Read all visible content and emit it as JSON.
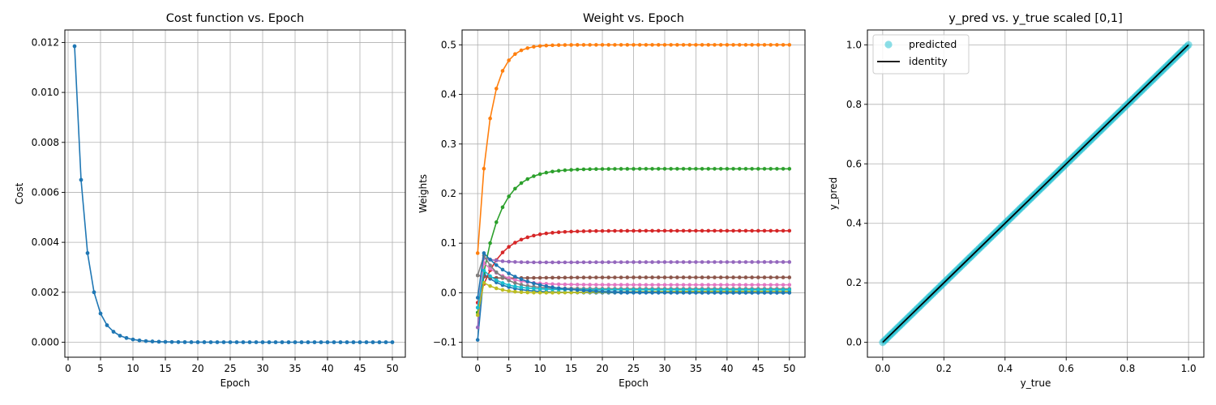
{
  "chart_data": [
    {
      "type": "line",
      "title": "Cost function vs. Epoch",
      "xlabel": "Epoch",
      "ylabel": "Cost",
      "xlim": [
        -0.5,
        52
      ],
      "ylim": [
        -0.0006,
        0.0125
      ],
      "xticks": [
        0,
        5,
        10,
        15,
        20,
        25,
        30,
        35,
        40,
        45,
        50
      ],
      "yticks": [
        0.0,
        0.002,
        0.004,
        0.006,
        0.008,
        0.01,
        0.012
      ],
      "ytick_labels": [
        "0.000",
        "0.002",
        "0.004",
        "0.006",
        "0.008",
        "0.010",
        "0.012"
      ],
      "grid": true,
      "series": [
        {
          "color": "#1f77b4",
          "x": [
            1,
            2,
            3,
            4,
            5,
            6,
            7,
            8,
            9,
            10,
            11,
            12,
            13,
            14,
            15,
            16,
            17,
            18,
            19,
            20,
            21,
            22,
            23,
            24,
            25,
            26,
            27,
            28,
            29,
            30,
            31,
            32,
            33,
            34,
            35,
            36,
            37,
            38,
            39,
            40,
            41,
            42,
            43,
            44,
            45,
            46,
            47,
            48,
            49,
            50
          ],
          "values": [
            0.01185,
            0.0065,
            0.00357,
            0.002,
            0.00115,
            0.00068,
            0.00042,
            0.00026,
            0.00017,
            0.00011,
            7e-05,
            4.5e-05,
            3e-05,
            2e-05,
            1.3e-05,
            9e-06,
            6e-06,
            4e-06,
            3e-06,
            2e-06,
            1.5e-06,
            1e-06,
            8e-07,
            6e-07,
            5e-07,
            4e-07,
            3e-07,
            2e-07,
            2e-07,
            1e-07,
            1e-07,
            0,
            0,
            0,
            0,
            0,
            0,
            0,
            0,
            0,
            0,
            0,
            0,
            0,
            0,
            0,
            0,
            0,
            0,
            0
          ]
        }
      ]
    },
    {
      "type": "line",
      "title": "Weight vs. Epoch",
      "xlabel": "Epoch",
      "ylabel": "Weights",
      "xlim": [
        -2.5,
        52.5
      ],
      "ylim": [
        -0.13,
        0.53
      ],
      "xticks": [
        0,
        5,
        10,
        15,
        20,
        25,
        30,
        35,
        40,
        45,
        50
      ],
      "yticks": [
        -0.1,
        0.0,
        0.1,
        0.2,
        0.3,
        0.4,
        0.5
      ],
      "ytick_labels": [
        "−0.1",
        "0.0",
        "0.1",
        "0.2",
        "0.3",
        "0.4",
        "0.5"
      ],
      "grid": true,
      "epochs": 51,
      "series": [
        {
          "color": "#1f77b4",
          "start": -0.095,
          "peak_epoch": 1,
          "peak": 0.038,
          "final": 0.0,
          "rate": 0.3
        },
        {
          "color": "#ff7f0e",
          "start": 0.08,
          "final": 0.5,
          "rate": 0.52
        },
        {
          "color": "#2ca02c",
          "start": -0.04,
          "final": 0.25,
          "rate": 0.33
        },
        {
          "color": "#d62728",
          "start": -0.02,
          "final": 0.125,
          "rate": 0.3
        },
        {
          "color": "#9467bd",
          "start": -0.07,
          "peak_epoch": 1,
          "peak": 0.07,
          "final": 0.062,
          "rate": 0.3,
          "dip": 0.058
        },
        {
          "color": "#8c564b",
          "start": 0.035,
          "final": 0.031,
          "rate": 0.3,
          "dip": -0.008
        },
        {
          "color": "#e377c2",
          "start": -0.03,
          "peak_epoch": 1,
          "peak": 0.06,
          "final": 0.016,
          "rate": 0.3
        },
        {
          "color": "#7f7f7f",
          "start": 0.035,
          "peak_epoch": 1,
          "peak": 0.075,
          "final": 0.008,
          "rate": 0.35
        },
        {
          "color": "#bcbd22",
          "start": -0.045,
          "peak_epoch": 1,
          "peak": 0.02,
          "final": 0.003,
          "rate": 0.22,
          "dip": -0.015
        },
        {
          "color": "#17becf",
          "start": -0.03,
          "peak_epoch": 1,
          "peak": 0.045,
          "final": 0.006,
          "rate": 0.35
        },
        {
          "color": "#1f77b4",
          "start": -0.01,
          "peak_epoch": 1,
          "peak": 0.08,
          "final": 0.0,
          "rate": 0.18
        }
      ]
    },
    {
      "type": "scatter",
      "title": "y_pred vs. y_true scaled [0,1]",
      "xlabel": "y_true",
      "ylabel": "y_pred",
      "xlim": [
        -0.05,
        1.05
      ],
      "ylim": [
        -0.05,
        1.05
      ],
      "xticks": [
        0.0,
        0.2,
        0.4,
        0.6,
        0.8,
        1.0
      ],
      "xtick_labels": [
        "0.0",
        "0.2",
        "0.4",
        "0.6",
        "0.8",
        "1.0"
      ],
      "yticks": [
        0.0,
        0.2,
        0.4,
        0.6,
        0.8,
        1.0
      ],
      "ytick_labels": [
        "0.0",
        "0.2",
        "0.4",
        "0.6",
        "0.8",
        "1.0"
      ],
      "grid": true,
      "legend": "top-left",
      "series": [
        {
          "name": "predicted",
          "color": "#17becf",
          "alpha": 0.5,
          "x_range": [
            0,
            1
          ],
          "n_points": 200
        },
        {
          "name": "identity",
          "color": "#000000",
          "x": [
            0,
            1
          ],
          "values": [
            0,
            1
          ]
        }
      ]
    }
  ]
}
